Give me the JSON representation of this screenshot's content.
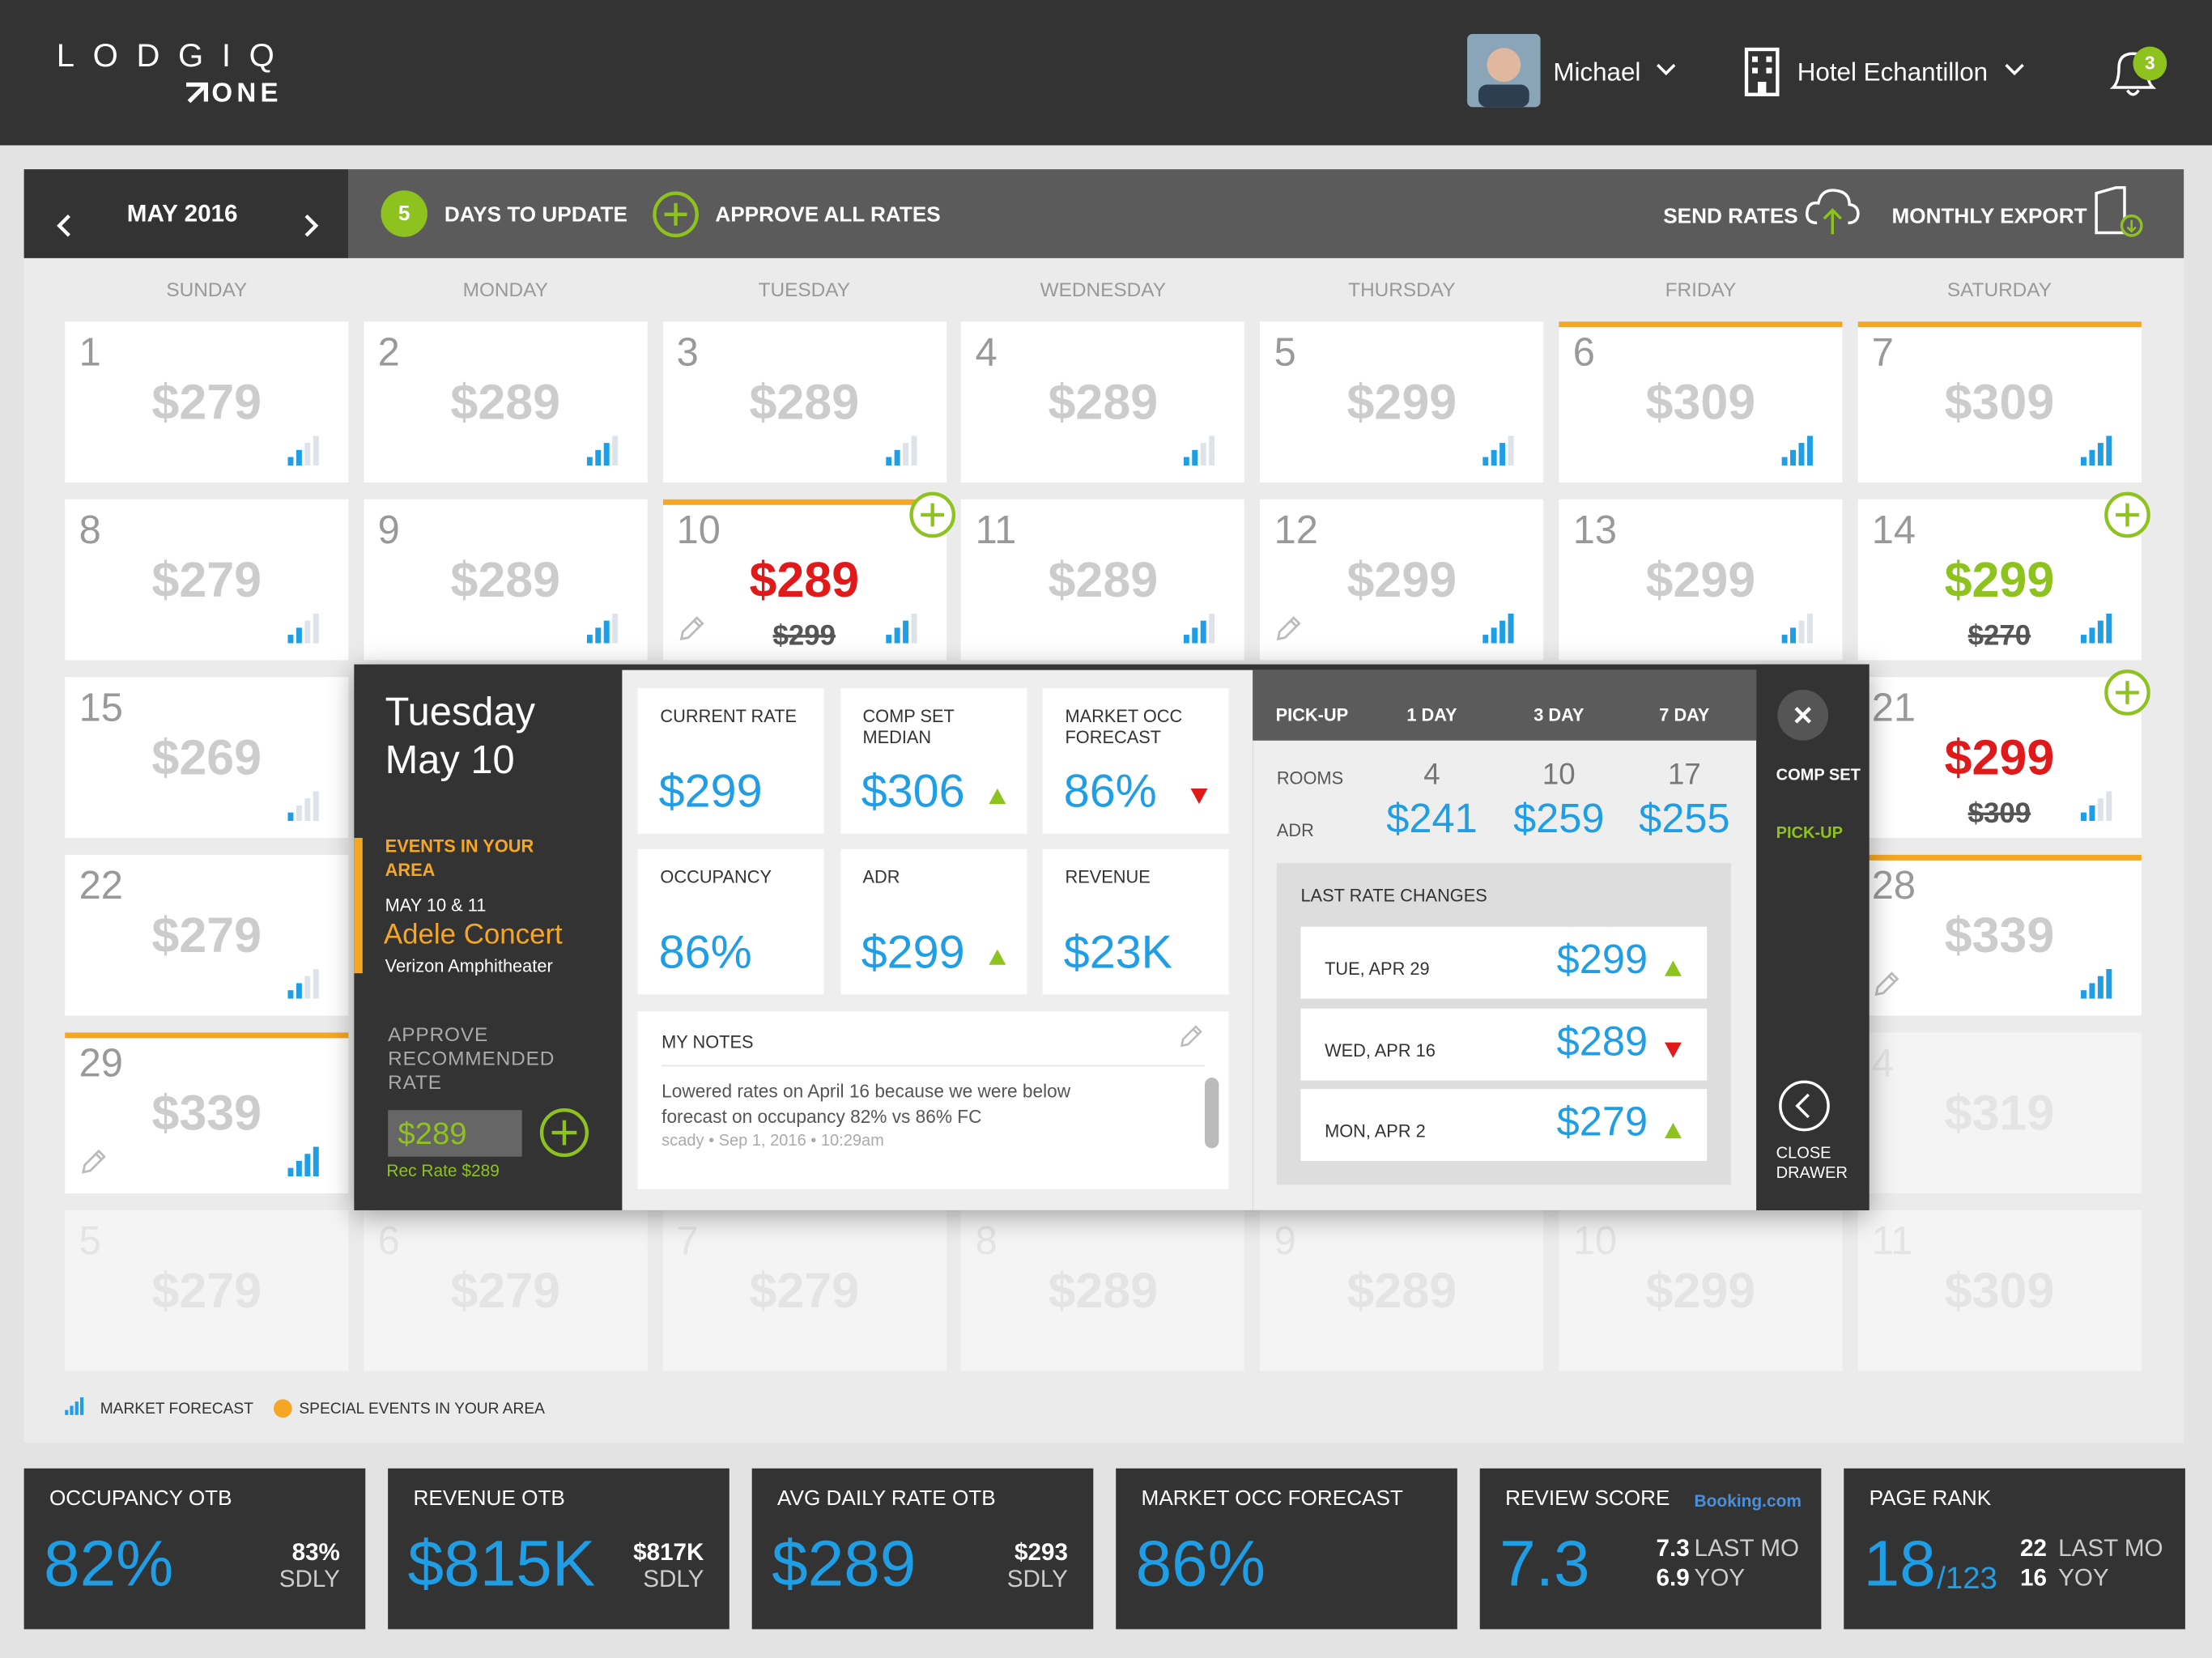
{
  "header": {
    "logo": "LODGIQ",
    "logo_sub": "ONE",
    "user": "Michael",
    "hotel": "Hotel Echantillon",
    "notifications": "3"
  },
  "toolbar": {
    "month": "MAY 2016",
    "days_count": "5",
    "days_label": "DAYS TO UPDATE",
    "approve_all": "APPROVE ALL RATES",
    "send_rates": "SEND RATES",
    "monthly_export": "MONTHLY EXPORT"
  },
  "weekdays": [
    "SUNDAY",
    "MONDAY",
    "TUESDAY",
    "WEDNESDAY",
    "THURSDAY",
    "FRIDAY",
    "SATURDAY"
  ],
  "weeks": [
    [
      {
        "day": "1",
        "rate": "$279",
        "forecast": 2
      },
      {
        "day": "2",
        "rate": "$289",
        "forecast": 3
      },
      {
        "day": "3",
        "rate": "$289",
        "forecast": 2
      },
      {
        "day": "4",
        "rate": "$289",
        "forecast": 2
      },
      {
        "day": "5",
        "rate": "$299",
        "forecast": 3
      },
      {
        "day": "6",
        "rate": "$309",
        "forecast": 4,
        "event": true
      },
      {
        "day": "7",
        "rate": "$309",
        "forecast": 4,
        "event": true
      }
    ],
    [
      {
        "day": "8",
        "rate": "$279",
        "forecast": 2
      },
      {
        "day": "9",
        "rate": "$289",
        "forecast": 3
      },
      {
        "day": "10",
        "rate": "$289",
        "old_rate": "$299",
        "state": "lowered",
        "forecast": 3,
        "event": true,
        "add": true,
        "edit": true
      },
      {
        "day": "11",
        "rate": "$289",
        "forecast": 3
      },
      {
        "day": "12",
        "rate": "$299",
        "forecast": 4,
        "edit": true
      },
      {
        "day": "13",
        "rate": "$299",
        "forecast": 2
      },
      {
        "day": "14",
        "rate": "$299",
        "old_rate": "$270",
        "state": "raised",
        "forecast": 4,
        "add": true
      }
    ],
    [
      {
        "day": "15",
        "rate": "$269",
        "forecast": 1
      },
      null,
      null,
      null,
      null,
      null,
      {
        "day": "21",
        "rate": "$299",
        "old_rate": "$309",
        "state": "lowered",
        "forecast": 2,
        "add": true
      }
    ],
    [
      {
        "day": "22",
        "rate": "$279",
        "forecast": 2
      },
      null,
      null,
      null,
      null,
      null,
      {
        "day": "28",
        "rate": "$339",
        "forecast": 4,
        "event": true,
        "edit": true
      }
    ],
    [
      {
        "day": "29",
        "rate": "$339",
        "forecast": 4,
        "event": true,
        "edit": true
      },
      null,
      null,
      null,
      null,
      null,
      {
        "day": "4",
        "rate": "$319",
        "state": "faded"
      }
    ],
    [
      {
        "day": "5",
        "rate": "$279",
        "state": "faded"
      },
      {
        "day": "6",
        "rate": "$279",
        "state": "faded"
      },
      {
        "day": "7",
        "rate": "$279",
        "state": "faded"
      },
      {
        "day": "8",
        "rate": "$289",
        "state": "faded"
      },
      {
        "day": "9",
        "rate": "$289",
        "state": "faded"
      },
      {
        "day": "10",
        "rate": "$299",
        "state": "faded"
      },
      {
        "day": "11",
        "rate": "$309",
        "state": "faded"
      }
    ]
  ],
  "legend": {
    "forecast": "MARKET FORECAST",
    "events": "SPECIAL EVENTS IN YOUR AREA"
  },
  "drawer": {
    "weekday": "Tuesday",
    "date": "May 10",
    "events_title": "EVENTS IN YOUR AREA",
    "event_dates": "MAY 10 & 11",
    "event_name": "Adele Concert",
    "event_venue": "Verizon Amphitheater",
    "approve_label": "APPROVE RECOMMENDED RATE",
    "approve_rate": "$289",
    "rec_rate": "Rec Rate $289",
    "metrics": [
      {
        "label": "CURRENT RATE",
        "value": "$299"
      },
      {
        "label": "COMP SET MEDIAN",
        "value": "$306",
        "trend": "up"
      },
      {
        "label": "MARKET OCC FORECAST",
        "value": "86%",
        "trend": "down"
      },
      {
        "label": "OCCUPANCY",
        "value": "86%"
      },
      {
        "label": "ADR",
        "value": "$299",
        "trend": "up"
      },
      {
        "label": "REVENUE",
        "value": "$23K"
      }
    ],
    "notes": {
      "title": "MY NOTES",
      "text": "Lowered rates on April 16 because we were below forecast on occupancy 82% vs 86% FC",
      "meta": "scady • Sep 1, 2016 • 10:29am"
    },
    "pickup": {
      "headers": [
        "PICK-UP",
        "1 DAY",
        "3 DAY",
        "7 DAY"
      ],
      "rows": [
        {
          "label": "ROOMS",
          "values": [
            "4",
            "10",
            "17"
          ]
        },
        {
          "label": "ADR",
          "values": [
            "$241",
            "$259",
            "$255"
          ]
        }
      ]
    },
    "rate_changes": {
      "title": "LAST RATE CHANGES",
      "items": [
        {
          "date": "TUE, APR 29",
          "rate": "$299",
          "trend": "up"
        },
        {
          "date": "WED, APR 16",
          "rate": "$289",
          "trend": "down"
        },
        {
          "date": "MON, APR 2",
          "rate": "$279",
          "trend": "up"
        }
      ]
    },
    "tabs": [
      "COMP SET",
      "PICK-UP"
    ],
    "close": "CLOSE DRAWER"
  },
  "kpis": [
    {
      "label": "OCCUPANCY OTB",
      "value": "82%",
      "compare": "83%",
      "compare_label": "SDLY"
    },
    {
      "label": "REVENUE OTB",
      "value": "$815K",
      "compare": "$817K",
      "compare_label": "SDLY"
    },
    {
      "label": "AVG DAILY RATE OTB",
      "value": "$289",
      "compare": "$293",
      "compare_label": "SDLY"
    },
    {
      "label": "MARKET OCC FORECAST",
      "value": "86%"
    },
    {
      "label": "REVIEW SCORE",
      "source": "Booking.com",
      "value": "7.3",
      "history": [
        {
          "value": "7.3",
          "label": "LAST MO"
        },
        {
          "value": "6.9",
          "label": "YOY"
        }
      ]
    },
    {
      "label": "PAGE RANK",
      "value": "18",
      "total": "/123",
      "history": [
        {
          "value": "22",
          "label": "LAST MO"
        },
        {
          "value": "16",
          "label": "YOY"
        }
      ]
    }
  ]
}
